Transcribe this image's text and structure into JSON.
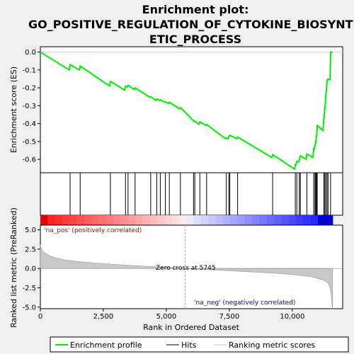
{
  "chart_data": {
    "type": "line",
    "title_lines": [
      "Enrichment plot:",
      "GO_POSITIVE_REGULATION_OF_CYTOKINE_BIOSYNTH",
      "ETIC_PROCESS"
    ],
    "xlabel": "Rank in Ordered Dataset",
    "ylabel_top": "Enrichment score (ES)",
    "ylabel_bottom": "Ranked list metric (PreRanked)",
    "xlim": [
      0,
      12000
    ],
    "es_ylim": [
      -0.675,
      0.03
    ],
    "metric_ylim": [
      -5.2,
      5.6
    ],
    "x_ticks": [
      0,
      2500,
      5000,
      7500,
      10000
    ],
    "x_tick_labels": [
      "0",
      "2,500",
      "5,000",
      "7,500",
      "10,000"
    ],
    "es_ticks": [
      0.0,
      -0.1,
      -0.2,
      -0.3,
      -0.4,
      -0.5,
      -0.6
    ],
    "es_tick_labels": [
      "0.0",
      "-0.1",
      "-0.2",
      "-0.3",
      "-0.4",
      "-0.5",
      "-0.6"
    ],
    "metric_ticks": [
      5,
      2.5,
      0,
      -2.5,
      -5
    ],
    "metric_tick_labels": [
      "5.0",
      "2.5",
      "0.0",
      "-2.5",
      "-5.0"
    ],
    "zero_cross": 5745,
    "zero_cross_label": "Zero cross at 5745",
    "pos_label": "'na_pos' (positively correlated)",
    "neg_label": "'na_neg' (negatively correlated)",
    "dataset_size": 11600,
    "hits": [
      1180,
      1580,
      2780,
      3380,
      3480,
      3760,
      4380,
      4620,
      4760,
      4960,
      5120,
      5560,
      6080,
      6130,
      6330,
      6600,
      7380,
      7480,
      7520,
      7830,
      9220,
      10120,
      10180,
      10280,
      10320,
      10580,
      10850,
      10900,
      10930,
      10960,
      10990,
      11250,
      11290,
      11330,
      11380,
      11420,
      11520
    ],
    "es_profile": {
      "x": [
        0,
        1150,
        1180,
        1550,
        1580,
        2750,
        2780,
        3350,
        3380,
        3450,
        3480,
        3730,
        3760,
        4350,
        4380,
        4590,
        4620,
        4730,
        4760,
        4930,
        4960,
        5090,
        5120,
        5530,
        5560,
        6050,
        6080,
        6100,
        6130,
        6300,
        6330,
        6570,
        6600,
        7350,
        7380,
        7450,
        7480,
        7490,
        7520,
        7800,
        7830,
        9190,
        9220,
        10090,
        10120,
        10150,
        10180,
        10250,
        10280,
        10290,
        10320,
        10550,
        10580,
        10820,
        10850,
        10870,
        10900,
        10910,
        10930,
        10940,
        10960,
        10970,
        10990,
        11220,
        11250,
        11260,
        11290,
        11300,
        11330,
        11340,
        11380,
        11390,
        11420,
        11500,
        11520,
        11600
      ],
      "y": [
        0.0,
        -0.1,
        -0.07,
        -0.1,
        -0.078,
        -0.19,
        -0.163,
        -0.213,
        -0.19,
        -0.196,
        -0.185,
        -0.21,
        -0.2,
        -0.253,
        -0.25,
        -0.27,
        -0.262,
        -0.27,
        -0.266,
        -0.28,
        -0.278,
        -0.288,
        -0.28,
        -0.318,
        -0.31,
        -0.38,
        -0.385,
        -0.388,
        -0.385,
        -0.405,
        -0.39,
        -0.41,
        -0.405,
        -0.485,
        -0.48,
        -0.485,
        -0.47,
        -0.47,
        -0.465,
        -0.485,
        -0.475,
        -0.59,
        -0.573,
        -0.655,
        -0.628,
        -0.63,
        -0.61,
        -0.615,
        -0.603,
        -0.6,
        -0.58,
        -0.6,
        -0.57,
        -0.59,
        -0.54,
        -0.545,
        -0.518,
        -0.52,
        -0.5,
        -0.505,
        -0.465,
        -0.47,
        -0.41,
        -0.44,
        -0.37,
        -0.375,
        -0.31,
        -0.315,
        -0.238,
        -0.24,
        -0.16,
        -0.158,
        -0.15,
        -0.155,
        0.0,
        0.0
      ]
    },
    "metric_profile": {
      "x": [
        0,
        30,
        100,
        200,
        400,
        700,
        1000,
        1500,
        2000,
        3000,
        4000,
        5000,
        5745,
        6500,
        7500,
        8500,
        9500,
        10200,
        10800,
        11100,
        11300,
        11400,
        11450,
        11500,
        11530,
        11560,
        11580,
        11600
      ],
      "y": [
        3.1,
        2.6,
        2.2,
        1.95,
        1.6,
        1.3,
        1.1,
        0.9,
        0.75,
        0.52,
        0.32,
        0.15,
        0.0,
        -0.13,
        -0.3,
        -0.47,
        -0.65,
        -0.85,
        -1.1,
        -1.35,
        -1.6,
        -1.85,
        -2.1,
        -2.5,
        -3.0,
        -3.8,
        -4.8,
        -5.0
      ]
    },
    "legend": [
      "Enrichment profile",
      "Hits",
      "Ranking metric scores"
    ],
    "legend_placement": "bottom",
    "colors": {
      "profile": "#00ee00",
      "hits": "#000000",
      "metric_fill": "#c8c8c8",
      "zero_line": "#b0b0b0",
      "pos_label": "#cc0000",
      "neg_label": "#0000cc",
      "background": "#f0f0f0"
    }
  }
}
